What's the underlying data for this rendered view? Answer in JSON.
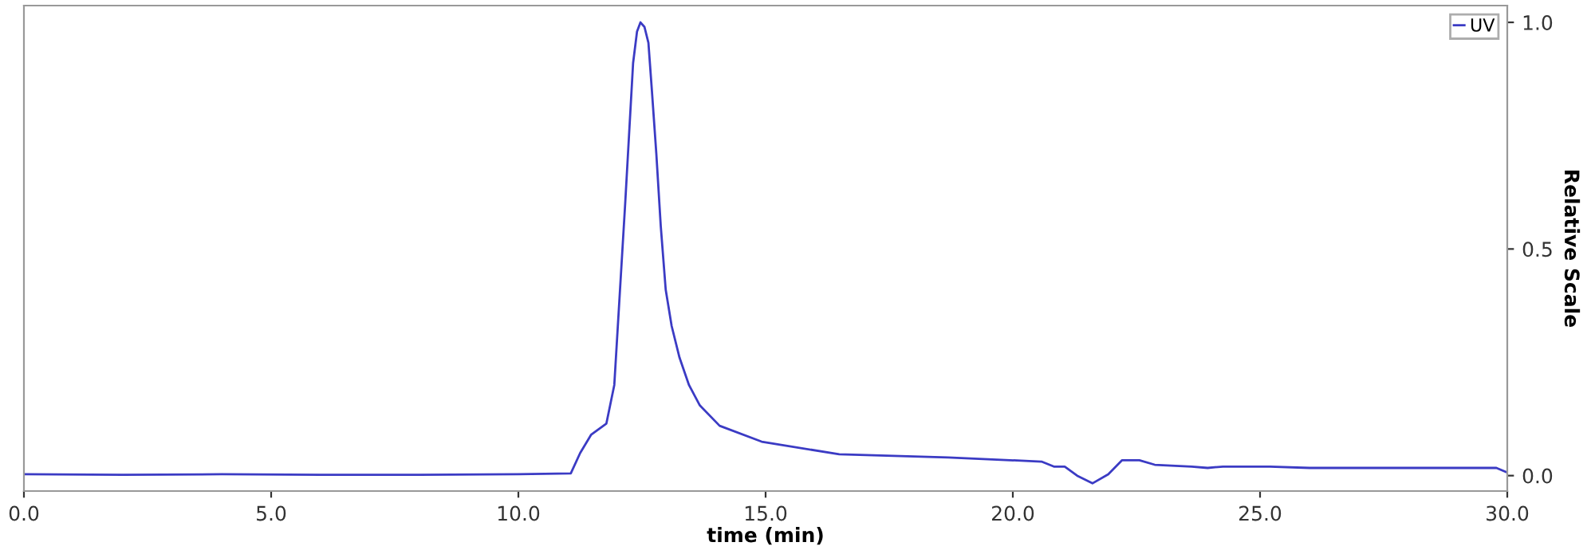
{
  "chart_data": {
    "type": "line",
    "xlabel": "time (min)",
    "ylabel": "Relative Scale",
    "x": [
      0,
      2,
      4,
      6,
      8,
      10,
      11.06,
      11.25,
      11.47,
      11.78,
      11.94,
      12.05,
      12.16,
      12.32,
      12.4,
      12.47,
      12.55,
      12.63,
      12.7,
      12.79,
      12.88,
      12.98,
      13.1,
      13.26,
      13.45,
      13.67,
      14.07,
      14.92,
      16.49,
      18.69,
      20.58,
      20.83,
      21.05,
      21.3,
      21.61,
      21.93,
      22.21,
      22.56,
      22.87,
      23.62,
      23.94,
      24.25,
      25.2,
      26.0,
      29.78,
      30
    ],
    "series": [
      {
        "name": "UV",
        "color": "#3b3bc4",
        "values": [
          0.003,
          0.002,
          0.003,
          0.002,
          0.002,
          0.003,
          0.005,
          0.05,
          0.09,
          0.115,
          0.2,
          0.4,
          0.6,
          0.91,
          0.98,
          1.0,
          0.99,
          0.955,
          0.85,
          0.71,
          0.55,
          0.41,
          0.33,
          0.26,
          0.2,
          0.155,
          0.11,
          0.075,
          0.047,
          0.04,
          0.031,
          0.02,
          0.02,
          0.0,
          -0.017,
          0.003,
          0.034,
          0.034,
          0.024,
          0.02,
          0.017,
          0.02,
          0.02,
          0.017,
          0.017,
          0.007
        ]
      }
    ],
    "xlim": [
      0,
      30
    ],
    "ylim": [
      -0.034,
      1.037
    ],
    "xticks": [
      {
        "value": 0,
        "label": "0.0"
      },
      {
        "value": 5,
        "label": "5.0"
      },
      {
        "value": 10,
        "label": "10.0"
      },
      {
        "value": 15,
        "label": "15.0"
      },
      {
        "value": 20,
        "label": "20.0"
      },
      {
        "value": 25,
        "label": "25.0"
      },
      {
        "value": 30,
        "label": "30.0"
      }
    ],
    "yticks": [
      {
        "value": 0,
        "label": "0.0"
      },
      {
        "value": 0.5,
        "label": "0.5"
      },
      {
        "value": 1,
        "label": "1.0"
      }
    ],
    "grid": false,
    "legend": "top right"
  }
}
